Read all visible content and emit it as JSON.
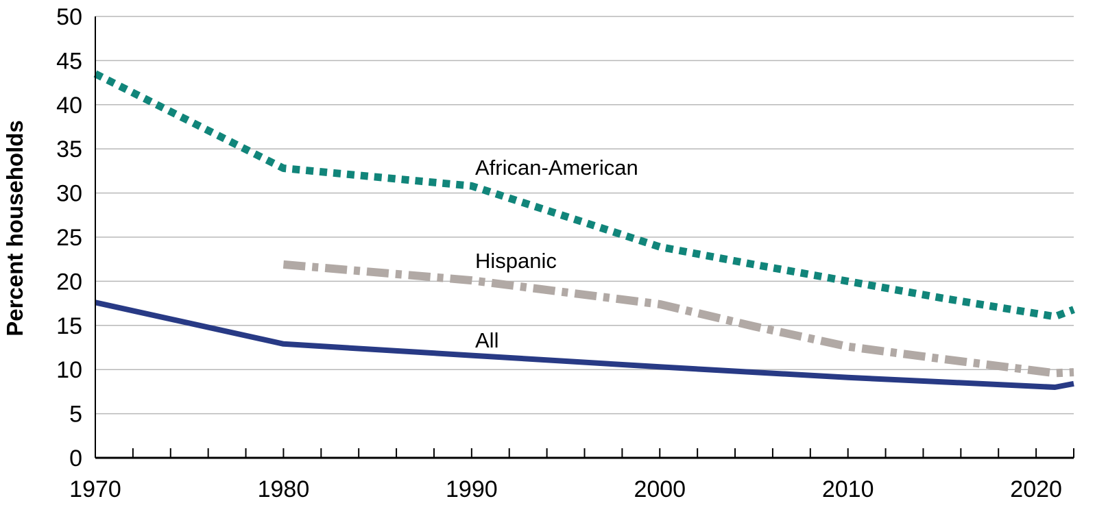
{
  "chart_data": {
    "type": "line",
    "title": "",
    "xlabel": "",
    "ylabel": "Percent households",
    "xlim": [
      1970,
      2022
    ],
    "ylim": [
      0,
      50
    ],
    "x_ticks": [
      1970,
      1980,
      1990,
      2000,
      2010,
      2020
    ],
    "y_ticks": [
      0,
      5,
      10,
      15,
      20,
      25,
      30,
      35,
      40,
      45,
      50
    ],
    "grid": "horizontal",
    "legend": "none (series labeled inline)",
    "series": [
      {
        "name": "African-American",
        "color": "#11857a",
        "style": "dotted",
        "x": [
          1970,
          1980,
          1990,
          2000,
          2005,
          2010,
          2015,
          2021,
          2022
        ],
        "y": [
          43.5,
          32.8,
          30.8,
          23.9,
          21.9,
          20.0,
          18.1,
          16.0,
          16.8
        ]
      },
      {
        "name": "Hispanic",
        "color": "#b1a9a5",
        "style": "dash-dot",
        "x": [
          1980,
          1990,
          2000,
          2005,
          2010,
          2015,
          2021,
          2022
        ],
        "y": [
          21.9,
          20.1,
          17.4,
          14.9,
          12.6,
          11.2,
          9.6,
          9.7
        ]
      },
      {
        "name": "All",
        "color": "#283a85",
        "style": "solid",
        "x": [
          1970,
          1980,
          1990,
          2000,
          2005,
          2010,
          2015,
          2021,
          2022
        ],
        "y": [
          17.6,
          12.9,
          11.6,
          10.3,
          9.7,
          9.1,
          8.6,
          8.0,
          8.4
        ]
      }
    ],
    "annotations": [
      {
        "text": "African-American",
        "series": "African-American"
      },
      {
        "text": "Hispanic",
        "series": "Hispanic"
      },
      {
        "text": "All",
        "series": "All"
      }
    ]
  }
}
